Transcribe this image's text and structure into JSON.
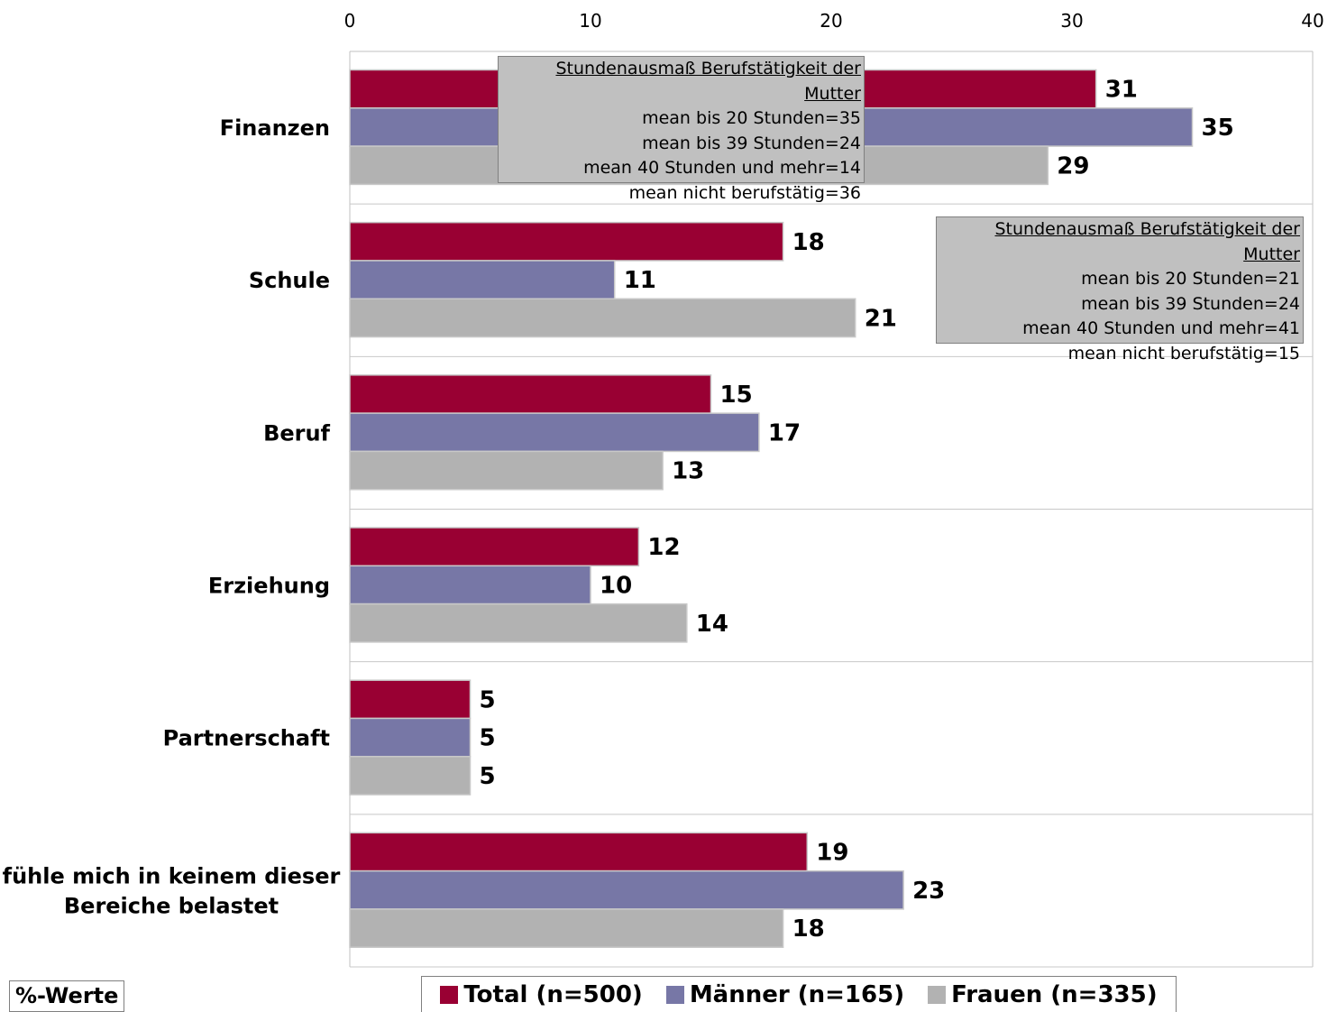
{
  "chart_data": {
    "type": "bar",
    "orientation": "horizontal",
    "categories": [
      "Finanzen",
      "Schule",
      "Beruf",
      "Erziehung",
      "Partnerschaft",
      [
        "fühle mich in keinem dieser",
        "Bereiche belastet"
      ]
    ],
    "series": [
      {
        "name": "Total (n=500)",
        "color": "#990033",
        "values": [
          31,
          18,
          15,
          12,
          5,
          19
        ]
      },
      {
        "name": "Männer (n=165)",
        "color": "#7777a6",
        "values": [
          35,
          11,
          17,
          10,
          5,
          23
        ]
      },
      {
        "name": "Frauen (n=335)",
        "color": "#b2b2b2",
        "values": [
          29,
          21,
          13,
          14,
          5,
          18
        ]
      }
    ],
    "xlim": [
      0,
      40
    ],
    "xticks": [
      0,
      10,
      20,
      30,
      40
    ],
    "xaxis_position": "top",
    "grid": "horizontal separators between categories",
    "legend_position": "bottom",
    "unit_label": "%-Werte",
    "annotations": [
      {
        "title": "Stundenausmaß Berufstätigkeit der Mutter",
        "lines": [
          "mean bis 20 Stunden=35",
          "mean bis 39 Stunden=24",
          "mean 40 Stunden und mehr=14",
          "mean nicht berufstätig=36"
        ]
      },
      {
        "title": "Stundenausmaß Berufstätigkeit der Mutter",
        "lines": [
          "mean bis 20 Stunden=21",
          "mean bis 39 Stunden=24",
          "mean 40 Stunden und mehr=41",
          "mean nicht berufstätig=15"
        ]
      }
    ]
  }
}
